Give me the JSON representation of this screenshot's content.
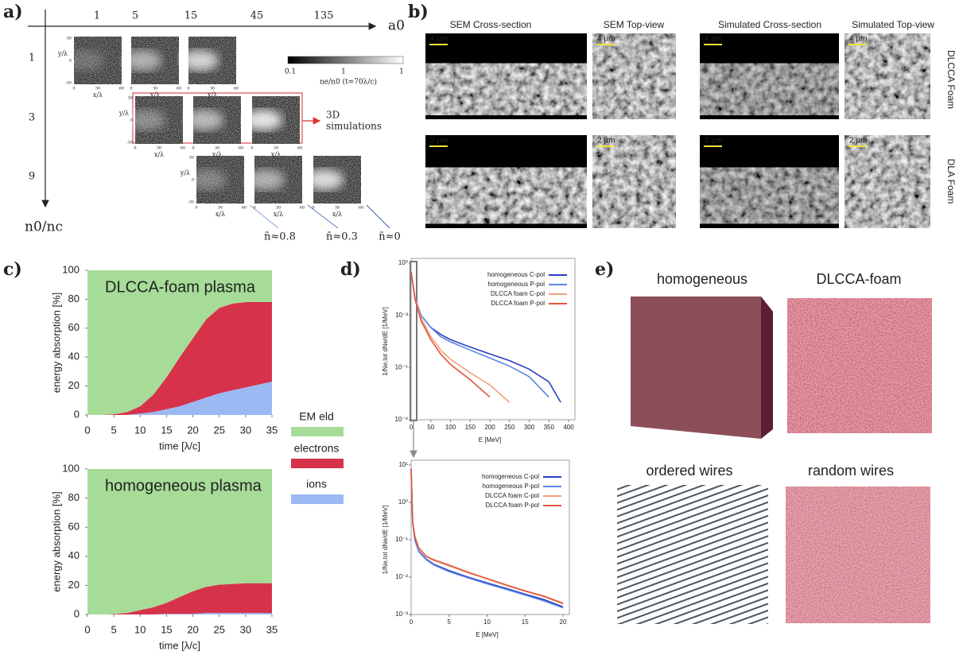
{
  "panel_labels": [
    "a)",
    "b)",
    "c)",
    "d)",
    "e)"
  ],
  "panel_a": {
    "columns": [
      "1",
      "5",
      "15",
      "45",
      "135"
    ],
    "column_axis": "a0",
    "rows": [
      "1",
      "3",
      "9"
    ],
    "row_axis": "n0/nc",
    "colorbar_ticks": [
      "0.1",
      "1",
      "1"
    ],
    "colorbar_label": "ne/n0 (t=70λ/c)",
    "callout": [
      "3D",
      "simulations"
    ],
    "averages": [
      "n̄≈0.8",
      "n̄≈0.3",
      "n̄≈0"
    ],
    "image_axes": {
      "x_label": "x/λ",
      "y_label": "y/λ",
      "x_ticks": [
        "0",
        "30",
        "60"
      ],
      "y_ticks": [
        "30",
        "0",
        "-30"
      ]
    }
  },
  "panel_b": {
    "headers": [
      "SEM Cross-section",
      "SEM  Top-view",
      "Simulated Cross-section",
      "Simulated Top-view"
    ],
    "row_labels": [
      "DLCCA Foam",
      "DLA Foam"
    ],
    "scale_bars": [
      "4 µm",
      "2 µm"
    ]
  },
  "panel_e": {
    "labels": [
      "homogeneous",
      "DLCCA-foam",
      "ordered wires",
      "random wires"
    ]
  },
  "chart_data": [
    {
      "type": "area",
      "title": "DLCCA-foam plasma",
      "x": [
        0,
        2.5,
        5,
        7.5,
        10,
        12.5,
        15,
        17.5,
        20,
        22.5,
        25,
        27.5,
        30,
        32.5,
        35
      ],
      "series": [
        {
          "name": "EM eld",
          "color": "#a6dc98",
          "values": [
            100,
            100,
            99.5,
            98,
            94,
            86,
            74,
            60,
            47,
            34,
            26,
            23,
            22,
            22,
            22
          ]
        },
        {
          "name": "electrons",
          "color": "#d6334b",
          "values": [
            0,
            0,
            0.5,
            2,
            5,
            12,
            22,
            34,
            44,
            54,
            59,
            60,
            59,
            57,
            55
          ]
        },
        {
          "name": "ions",
          "color": "#9cb9f4",
          "values": [
            0,
            0,
            0,
            0,
            1,
            2,
            4,
            6,
            9,
            12,
            15,
            17,
            19,
            21,
            23
          ]
        }
      ],
      "xlim": [
        0,
        35
      ],
      "ylim": [
        0,
        100
      ],
      "xticks": [
        0,
        5,
        10,
        15,
        20,
        25,
        30,
        35
      ],
      "yticks": [
        0,
        20,
        40,
        60,
        80,
        100
      ],
      "xlabel": "time [λ/c]",
      "ylabel": "energy absorption [%]",
      "legend": "right"
    },
    {
      "type": "area",
      "title": "homogeneous plasma",
      "x": [
        0,
        2.5,
        5,
        7.5,
        10,
        12.5,
        15,
        17.5,
        20,
        22.5,
        25,
        27.5,
        30,
        32.5,
        35
      ],
      "series": [
        {
          "color": "#a6dc98",
          "values": [
            100,
            100,
            99.7,
            99,
            97,
            95,
            92,
            88,
            84,
            81,
            79.5,
            79,
            78.5,
            78.5,
            78.5
          ]
        },
        {
          "color": "#d6334b",
          "values": [
            0,
            0,
            0.3,
            1,
            3,
            5,
            7.5,
            11.5,
            15.5,
            18,
            19.5,
            20,
            20.5,
            20.5,
            20.5
          ]
        },
        {
          "color": "#9cb9f4",
          "values": [
            0,
            0,
            0,
            0,
            0,
            0,
            0.5,
            0.5,
            0.5,
            1,
            1,
            1,
            1,
            1,
            1
          ]
        }
      ],
      "xlim": [
        0,
        35
      ],
      "ylim": [
        0,
        100
      ],
      "xticks": [
        0,
        5,
        10,
        15,
        20,
        25,
        30,
        35
      ],
      "yticks": [
        0,
        20,
        40,
        60,
        80,
        100
      ],
      "xlabel": "time [λ/c]",
      "ylabel": "energy absorption [%]"
    },
    {
      "type": "line",
      "log_y": true,
      "x": [
        0,
        10,
        25,
        50,
        75,
        100,
        150,
        200,
        250,
        300,
        350,
        380,
        400
      ],
      "series": [
        {
          "name": "homogeneous C-pol",
          "color": "#2b3fbf",
          "values": [
            0.3,
            0.01,
            0.001,
            0.0002,
            8e-05,
            4e-05,
            1.5e-05,
            6e-06,
            2.5e-06,
            8e-07,
            1.5e-07,
            1e-08,
            null
          ]
        },
        {
          "name": "homogeneous P-pol",
          "color": "#5b86e6",
          "values": [
            0.3,
            0.01,
            0.001,
            0.0002,
            6e-05,
            3e-05,
            1e-05,
            3.5e-06,
            1.2e-06,
            3e-07,
            2e-08,
            null,
            null
          ]
        },
        {
          "name": "DLCCA foam C-pol",
          "color": "#f3a27e",
          "values": [
            0.3,
            0.01,
            0.0007,
            6e-05,
            1e-05,
            3e-06,
            5e-07,
            1e-07,
            1e-08,
            null,
            null,
            null,
            null
          ]
        },
        {
          "name": "DLCCA foam P-pol",
          "color": "#e2553a",
          "values": [
            0.3,
            0.008,
            0.0005,
            4e-05,
            6e-06,
            1.5e-06,
            2e-07,
            2e-08,
            null,
            null,
            null,
            null,
            null
          ]
        }
      ],
      "xlim": [
        0,
        400
      ],
      "ylim": [
        1e-09,
        1
      ],
      "xticks": [
        0,
        50,
        100,
        150,
        200,
        250,
        300,
        350,
        400
      ],
      "yticks": [
        {
          "value": 1,
          "label": "10⁰"
        },
        {
          "value": 0.001,
          "label": "10⁻³"
        },
        {
          "value": 1e-06,
          "label": "10⁻⁶"
        },
        {
          "value": 1e-09,
          "label": "10⁻⁹"
        }
      ],
      "xlabel": "E [MeV]",
      "ylabel": "1/Ne,tot dNe/dE [1/MeV]",
      "legend": "upper right"
    },
    {
      "type": "line",
      "log_y": true,
      "x": [
        0,
        0.2,
        0.5,
        1,
        2,
        3,
        5,
        7.5,
        10,
        12.5,
        15,
        17.5,
        20
      ],
      "series": [
        {
          "name": "homogeneous C-pol",
          "color": "#2b3fbf",
          "values": [
            8,
            0.3,
            0.1,
            0.05,
            0.03,
            0.022,
            0.015,
            0.01,
            0.007,
            0.005,
            0.0035,
            0.0025,
            0.0016
          ]
        },
        {
          "name": "homogeneous P-pol",
          "color": "#5b86e6",
          "values": [
            8,
            0.28,
            0.095,
            0.048,
            0.029,
            0.021,
            0.014,
            0.0095,
            0.0066,
            0.0047,
            0.0033,
            0.0023,
            0.0015
          ]
        },
        {
          "name": "DLCCA foam C-pol",
          "color": "#f3a27e",
          "values": [
            8,
            0.3,
            0.12,
            0.06,
            0.035,
            0.028,
            0.02,
            0.013,
            0.009,
            0.006,
            0.0042,
            0.003,
            0.0019
          ]
        },
        {
          "name": "DLCCA foam P-pol",
          "color": "#e2553a",
          "values": [
            8,
            0.31,
            0.12,
            0.061,
            0.036,
            0.029,
            0.021,
            0.0135,
            0.0092,
            0.0062,
            0.0043,
            0.0031,
            0.002
          ]
        }
      ],
      "xlim": [
        0,
        20
      ],
      "ylim": [
        0.001,
        10
      ],
      "xticks": [
        0,
        5,
        10,
        15,
        20
      ],
      "yticks": [
        {
          "value": 10,
          "label": "10¹"
        },
        {
          "value": 1,
          "label": "10⁰"
        },
        {
          "value": 0.1,
          "label": "10⁻¹"
        },
        {
          "value": 0.01,
          "label": "10⁻²"
        },
        {
          "value": 0.001,
          "label": "10⁻³"
        }
      ],
      "xlabel": "E [MeV]",
      "ylabel": "1/Ne,tot dNe/dE [1/MeV]",
      "legend": "upper right"
    }
  ]
}
